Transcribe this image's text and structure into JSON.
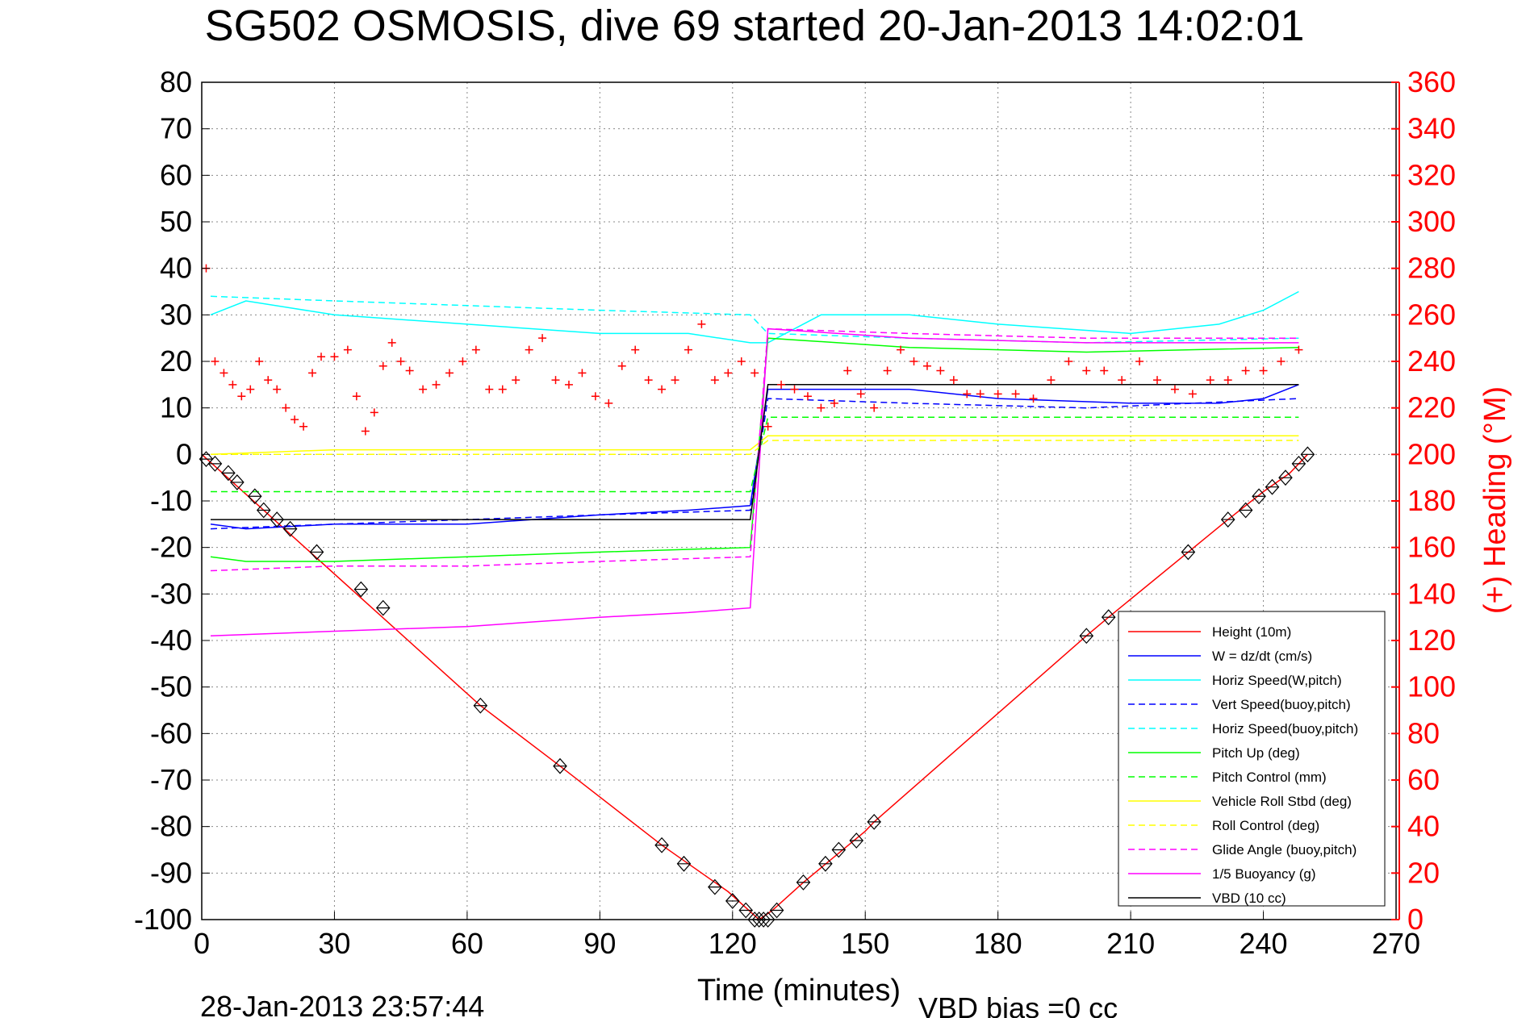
{
  "title": "SG502 OSMOSIS, dive 69 started 20-Jan-2013 14:02:01",
  "footer": {
    "timestamp": "28-Jan-2013 23:57:44",
    "vbd_bias": "VBD bias =0 cc"
  },
  "chart_data": {
    "type": "line",
    "title": "SG502 OSMOSIS, dive 69 started 20-Jan-2013 14:02:01",
    "xlabel": "Time (minutes)",
    "ylabel": "",
    "y2label": "(+) Heading (°M)",
    "xlim": [
      0,
      270
    ],
    "ylim": [
      -100,
      80
    ],
    "y2lim": [
      0,
      360
    ],
    "xticks": [
      0,
      30,
      60,
      90,
      120,
      150,
      180,
      210,
      240,
      270
    ],
    "yticks": [
      80,
      70,
      60,
      50,
      40,
      30,
      20,
      10,
      0,
      -10,
      -20,
      -30,
      -40,
      -50,
      -60,
      -70,
      -80,
      -90,
      -100
    ],
    "y2ticks": [
      360,
      340,
      320,
      300,
      280,
      260,
      240,
      220,
      200,
      180,
      160,
      140,
      120,
      100,
      80,
      60,
      40,
      20,
      0
    ],
    "grid": true,
    "legend_position": "bottom-right",
    "colors": {
      "height": "#ff0000",
      "w": "#0000ff",
      "horiz_w": "#00ffff",
      "vert_buoy": "#0000ff",
      "horiz_buoy": "#00ffff",
      "pitch_up": "#00ff00",
      "pitch_ctrl": "#00ff00",
      "roll": "#ffff00",
      "roll_ctrl": "#ffff00",
      "glide": "#ff00ff",
      "buoy": "#ff00ff",
      "vbd": "#000000",
      "heading": "#ff0000",
      "axis_right": "#ff0000"
    },
    "series": [
      {
        "name": "Height (10m)",
        "style": "solid",
        "color": "#ff0000",
        "x": [
          0,
          63,
          81,
          104,
          119,
          126,
          129,
          136,
          150,
          152,
          200,
          205,
          223,
          232,
          240,
          246,
          250
        ],
        "y": [
          0,
          -54,
          -67,
          -84,
          -94,
          -100,
          -98,
          -92,
          -81,
          -79,
          -39,
          -35,
          -21,
          -14,
          -8,
          -4,
          0
        ]
      },
      {
        "name": "W = dz/dt (cm/s)",
        "style": "solid",
        "color": "#0000ff",
        "x": [
          2,
          10,
          30,
          60,
          90,
          110,
          124,
          128,
          140,
          160,
          180,
          210,
          230,
          240,
          248
        ],
        "y": [
          -15,
          -16,
          -15,
          -15,
          -13,
          -12,
          -11,
          14,
          14,
          14,
          12,
          11,
          11,
          12,
          15
        ]
      },
      {
        "name": "Horiz Speed(W,pitch)",
        "style": "solid",
        "color": "#00ffff",
        "x": [
          2,
          10,
          30,
          60,
          90,
          110,
          124,
          128,
          140,
          160,
          180,
          210,
          230,
          240,
          248
        ],
        "y": [
          30,
          33,
          30,
          28,
          26,
          26,
          24,
          24,
          30,
          30,
          28,
          26,
          28,
          31,
          35
        ]
      },
      {
        "name": "Vert Speed(buoy,pitch)",
        "style": "dashed",
        "color": "#0000ff",
        "x": [
          2,
          30,
          60,
          90,
          124,
          128,
          160,
          200,
          248
        ],
        "y": [
          -16,
          -15,
          -14,
          -13,
          -12,
          12,
          11,
          10,
          12
        ]
      },
      {
        "name": "Horiz Speed(buoy,pitch)",
        "style": "dashed",
        "color": "#00ffff",
        "x": [
          2,
          30,
          60,
          90,
          124,
          128,
          160,
          200,
          248
        ],
        "y": [
          34,
          33,
          32,
          31,
          30,
          26,
          25,
          24,
          25
        ]
      },
      {
        "name": "Pitch Up (deg)",
        "style": "solid",
        "color": "#00ff00",
        "x": [
          2,
          10,
          30,
          60,
          90,
          124,
          128,
          160,
          200,
          248
        ],
        "y": [
          -22,
          -23,
          -23,
          -22,
          -21,
          -20,
          25,
          23,
          22,
          23
        ]
      },
      {
        "name": "Pitch Control (mm)",
        "style": "dashed",
        "color": "#00ff00",
        "x": [
          2,
          124,
          128,
          248
        ],
        "y": [
          -8,
          -8,
          8,
          8
        ]
      },
      {
        "name": "Vehicle Roll Stbd (deg)",
        "style": "solid",
        "color": "#ffff00",
        "x": [
          2,
          30,
          60,
          90,
          124,
          128,
          160,
          200,
          248
        ],
        "y": [
          0,
          1,
          1,
          1,
          1,
          4,
          4,
          4,
          4
        ]
      },
      {
        "name": "Roll Control (deg)",
        "style": "dashed",
        "color": "#ffff00",
        "x": [
          2,
          124,
          128,
          248
        ],
        "y": [
          0,
          0,
          3,
          3
        ]
      },
      {
        "name": "Glide Angle (buoy,pitch)",
        "style": "dashed",
        "color": "#ff00ff",
        "x": [
          2,
          30,
          60,
          90,
          124,
          128,
          160,
          200,
          248
        ],
        "y": [
          -25,
          -24,
          -24,
          -23,
          -22,
          27,
          26,
          25,
          25
        ]
      },
      {
        "name": "1/5 Buoyancy (g)",
        "style": "solid",
        "color": "#ff00ff",
        "x": [
          2,
          30,
          60,
          90,
          110,
          124,
          128,
          160,
          200,
          248
        ],
        "y": [
          -39,
          -38,
          -37,
          -35,
          -34,
          -33,
          27,
          25,
          24,
          24
        ]
      },
      {
        "name": "VBD (10 cc)",
        "style": "solid",
        "color": "#000000",
        "x": [
          2,
          124,
          128,
          248
        ],
        "y": [
          -14,
          -14,
          15,
          15
        ]
      }
    ],
    "heading": {
      "name": "(+) Heading (°M)",
      "color": "#ff0000",
      "x": [
        1,
        3,
        5,
        7,
        9,
        11,
        13,
        15,
        17,
        19,
        21,
        23,
        25,
        27,
        30,
        33,
        35,
        37,
        39,
        41,
        43,
        45,
        47,
        50,
        53,
        56,
        59,
        62,
        65,
        68,
        71,
        74,
        77,
        80,
        83,
        86,
        89,
        92,
        95,
        98,
        101,
        104,
        107,
        110,
        113,
        116,
        119,
        122,
        125,
        128,
        131,
        134,
        137,
        140,
        143,
        146,
        149,
        152,
        155,
        158,
        161,
        164,
        167,
        170,
        173,
        176,
        180,
        184,
        188,
        192,
        196,
        200,
        204,
        208,
        212,
        216,
        220,
        224,
        228,
        232,
        236,
        240,
        244,
        248
      ],
      "y": [
        280,
        240,
        235,
        230,
        225,
        228,
        240,
        232,
        228,
        220,
        215,
        212,
        235,
        242,
        242,
        245,
        225,
        210,
        218,
        238,
        248,
        240,
        236,
        228,
        230,
        235,
        240,
        245,
        228,
        228,
        232,
        245,
        250,
        232,
        230,
        235,
        225,
        222,
        238,
        245,
        232,
        228,
        232,
        245,
        256,
        232,
        235,
        240,
        235,
        212,
        230,
        228,
        225,
        220,
        222,
        236,
        226,
        220,
        236,
        245,
        240,
        238,
        236,
        232,
        226,
        226,
        226,
        226,
        224,
        232,
        240,
        236,
        236,
        232,
        240,
        232,
        228,
        226,
        232,
        232,
        236,
        236,
        240,
        245
      ]
    },
    "vbd_markers": {
      "x": [
        1,
        3,
        6,
        8,
        12,
        14,
        17,
        20,
        26,
        36,
        41,
        63,
        81,
        104,
        109,
        116,
        120,
        123,
        125,
        126,
        127,
        128,
        130,
        136,
        141,
        144,
        148,
        152,
        200,
        205,
        223,
        232,
        236,
        239,
        242,
        245,
        248,
        250
      ],
      "y": [
        -1,
        -2,
        -4,
        -6,
        -9,
        -12,
        -14,
        -16,
        -21,
        -29,
        -33,
        -54,
        -67,
        -84,
        -88,
        -93,
        -96,
        -98,
        -100,
        -100,
        -100,
        -100,
        -98,
        -92,
        -88,
        -85,
        -83,
        -79,
        -39,
        -35,
        -21,
        -14,
        -12,
        -9,
        -7,
        -5,
        -2,
        0
      ]
    },
    "legend": [
      "Height (10m)",
      "W = dz/dt (cm/s)",
      "Horiz Speed(W,pitch)",
      "Vert Speed(buoy,pitch)",
      "Horiz Speed(buoy,pitch)",
      "Pitch Up (deg)",
      "Pitch Control (mm)",
      "Vehicle Roll Stbd (deg)",
      "Roll Control (deg)",
      "Glide Angle (buoy,pitch)",
      "1/5 Buoyancy (g)",
      "VBD (10 cc)"
    ]
  }
}
